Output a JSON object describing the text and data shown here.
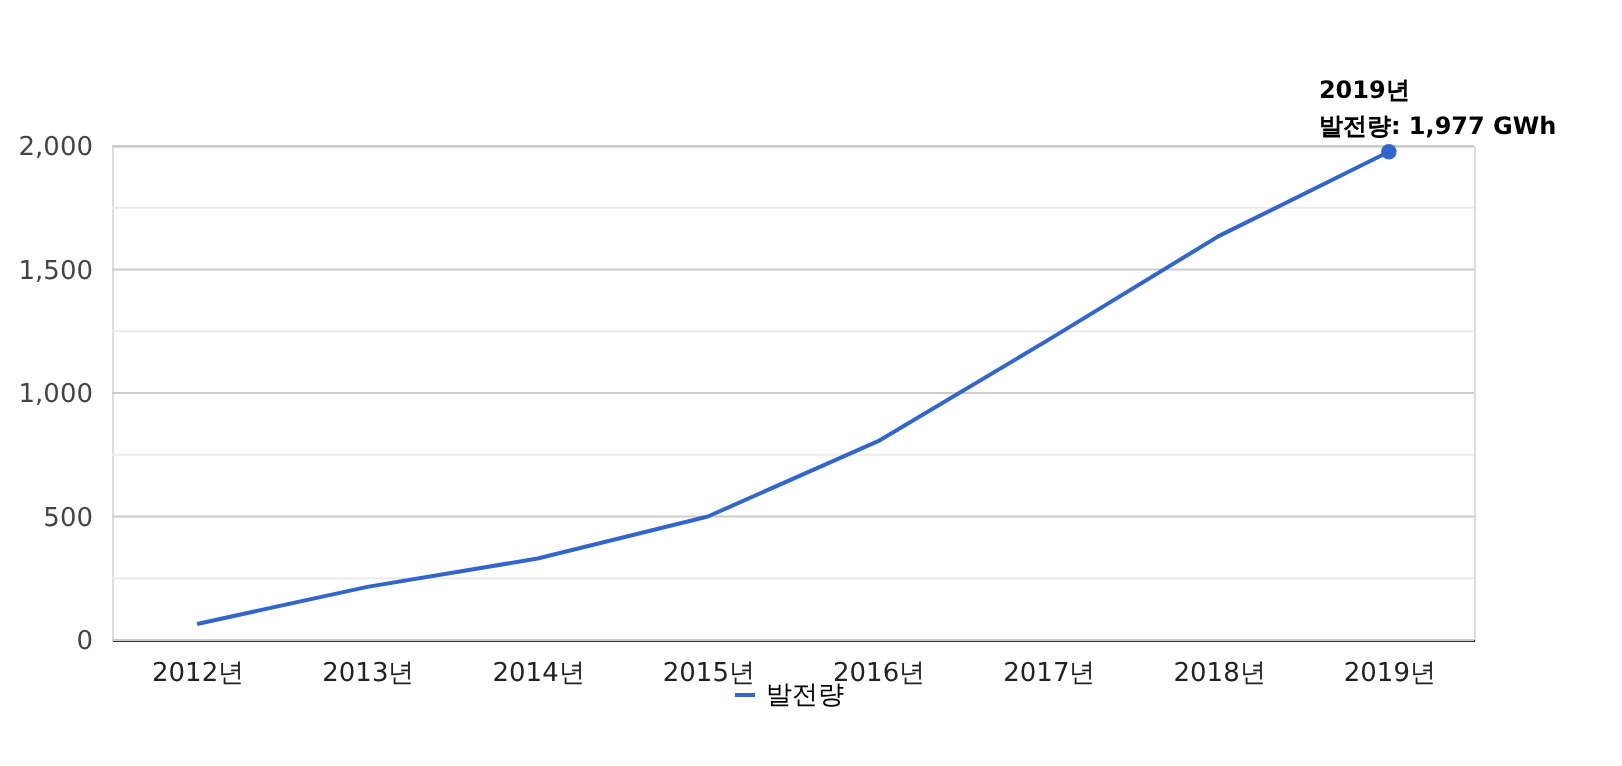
{
  "chart_data": {
    "type": "line",
    "categories": [
      "2012년",
      "2013년",
      "2014년",
      "2015년",
      "2016년",
      "2017년",
      "2018년",
      "2019년"
    ],
    "series": [
      {
        "name": "발전량",
        "color": "#3366cc",
        "values": [
          65,
          215,
          330,
          500,
          805,
          1215,
          1635,
          1977
        ]
      }
    ],
    "ylim": [
      0,
      2000
    ],
    "yticks": [
      0,
      {
        "value": 250,
        "label": null
      },
      500,
      {
        "value": 750,
        "label": null
      },
      {
        "value": 1000,
        "label": "1,000"
      },
      {
        "value": 1250,
        "label": null
      },
      {
        "value": 1500,
        "label": "1,500"
      },
      {
        "value": 1750,
        "label": null
      },
      {
        "value": 2000,
        "label": "2,000"
      }
    ],
    "grid": "y",
    "legend": "bottom",
    "marker": "none",
    "line_style": "solid",
    "annotations": [
      {
        "text": "2019년\n발전량: 1,977 GWh",
        "x": "2019년",
        "y": 1977
      }
    ]
  }
}
